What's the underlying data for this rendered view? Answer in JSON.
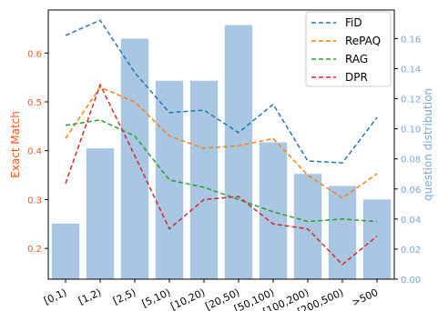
{
  "chart_data": {
    "type": "bar+line",
    "categories": [
      "[0,1)",
      "[1,2)",
      "[2,5)",
      "[5,10)",
      "[10,20)",
      "[20,50)",
      "[50,100)",
      "[100,200)",
      "[200,500)",
      ">500"
    ],
    "bars": {
      "axis": "right",
      "color": "#a9c6e3",
      "values": [
        0.037,
        0.087,
        0.16,
        0.132,
        0.132,
        0.169,
        0.091,
        0.07,
        0.062,
        0.053
      ]
    },
    "series": [
      {
        "name": "FiD",
        "color": "#1f77b4",
        "values": [
          0.636,
          0.667,
          0.56,
          0.478,
          0.483,
          0.437,
          0.495,
          0.379,
          0.375,
          0.468
        ]
      },
      {
        "name": "RePAQ",
        "color": "#ff7f0e",
        "values": [
          0.425,
          0.53,
          0.5,
          0.43,
          0.405,
          0.41,
          0.425,
          0.35,
          0.303,
          0.353
        ]
      },
      {
        "name": "RAG",
        "color": "#2ca02c",
        "values": [
          0.452,
          0.463,
          0.43,
          0.34,
          0.325,
          0.3,
          0.275,
          0.255,
          0.26,
          0.255
        ]
      },
      {
        "name": "DPR",
        "color": "#d62728",
        "values": [
          0.333,
          0.535,
          0.39,
          0.24,
          0.3,
          0.306,
          0.25,
          0.24,
          0.167,
          0.225
        ]
      }
    ],
    "ylabel_left": "Exact Match",
    "ylabel_right": "question distribution",
    "ylim_left": [
      0.137,
      0.688
    ],
    "ylim_right": [
      0,
      0.179
    ],
    "yticks_left": [
      "0.2",
      "0.3",
      "0.4",
      "0.5",
      "0.6"
    ],
    "yticks_right": [
      "0.00",
      "0.02",
      "0.04",
      "0.06",
      "0.08",
      "0.10",
      "0.12",
      "0.14",
      "0.16"
    ],
    "legend": "top-right",
    "left_axis_color": "#ff5722",
    "right_axis_color": "#7aa6d8",
    "grid": false
  }
}
